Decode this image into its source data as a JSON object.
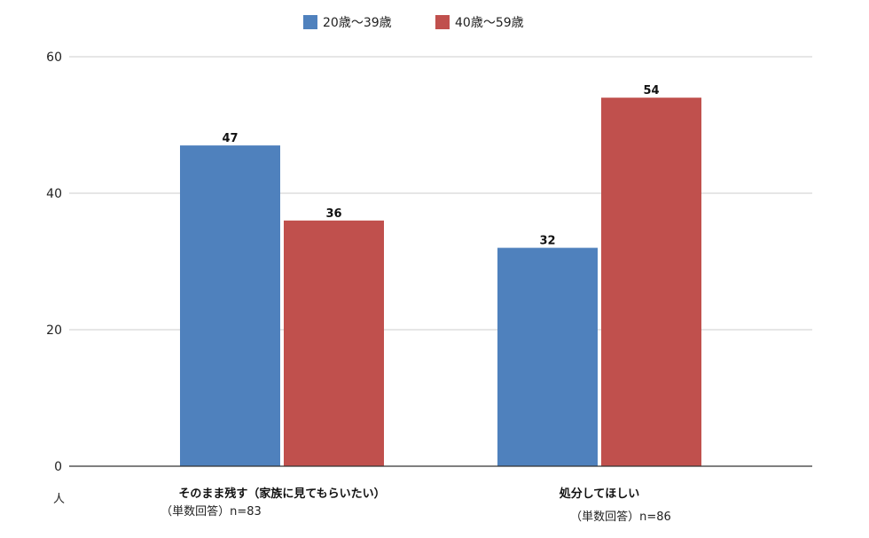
{
  "chart_data": {
    "type": "bar",
    "title": "",
    "xlabel": "",
    "ylabel": "人",
    "ylim": [
      0,
      60
    ],
    "yticks": [
      0,
      20,
      40,
      60
    ],
    "grid": true,
    "legend_position": "top-center",
    "categories": [
      {
        "label": "そのまま残す（家族に見てもらいたい）",
        "sublabel": "（単数回答）n=83"
      },
      {
        "label": "処分してほしい",
        "sublabel": "（単数回答）n=86"
      }
    ],
    "series": [
      {
        "name": "20歳〜39歳",
        "color": "#4f81bd",
        "values": [
          47,
          32
        ]
      },
      {
        "name": "40歳〜59歳",
        "color": "#c0504d",
        "values": [
          36,
          54
        ]
      }
    ]
  }
}
